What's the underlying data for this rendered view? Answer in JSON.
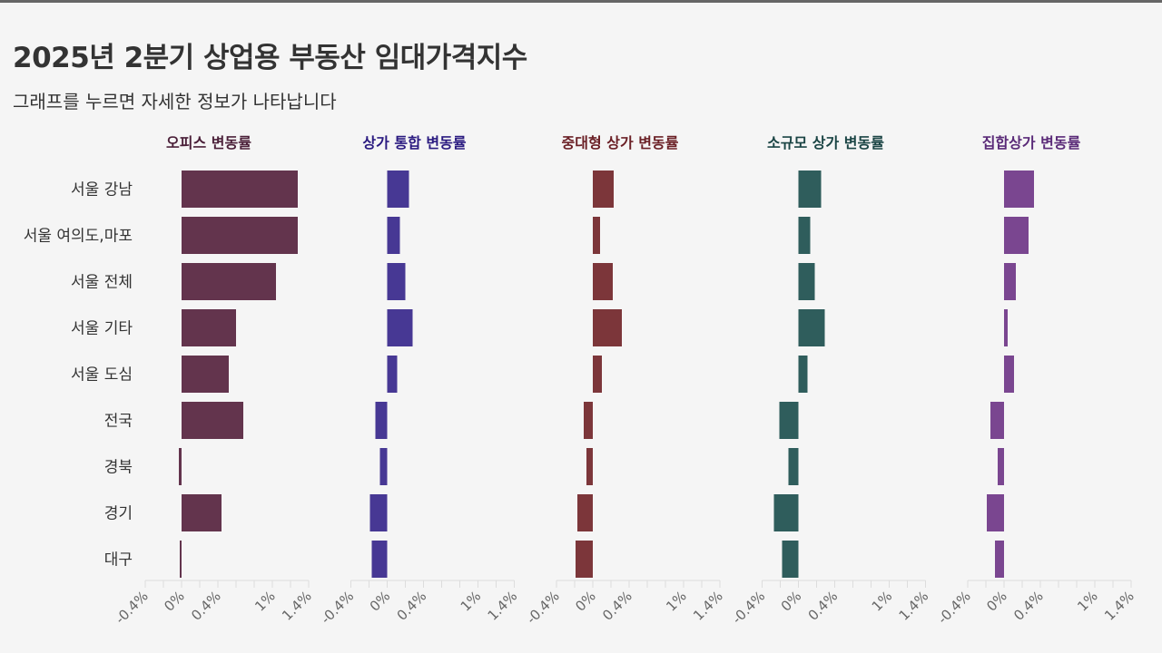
{
  "header": {
    "title": "2025년 2분기 상업용 부동산 임대가격지수",
    "subtitle": "그래프를 누르면 자세한 정보가 나타납니다"
  },
  "chart_data": {
    "type": "bar",
    "orientation": "horizontal",
    "layout": "small-multiples",
    "categories": [
      "서울 강남",
      "서울 여의도,마포",
      "서울 전체",
      "서울 기타",
      "서울 도심",
      "전국",
      "경북",
      "경기",
      "대구"
    ],
    "x_ticks": [
      -0.4,
      0,
      0.4,
      1,
      1.4
    ],
    "x_tick_labels": [
      "-0.4%",
      "0%",
      "0.4%",
      "1%",
      "1.4%"
    ],
    "xlim": [
      -0.4,
      1.4
    ],
    "grid": false,
    "series": [
      {
        "name": "오피스 변동률",
        "color": "#63344d",
        "title_color": "#4a1f38",
        "values": [
          1.28,
          1.28,
          1.04,
          0.6,
          0.52,
          0.68,
          -0.03,
          0.44,
          -0.02
        ]
      },
      {
        "name": "상가 통합 변동률",
        "color": "#473894",
        "title_color": "#2a1a80",
        "values": [
          0.24,
          0.14,
          0.2,
          0.28,
          0.11,
          -0.13,
          -0.08,
          -0.19,
          -0.17
        ]
      },
      {
        "name": "중대형 상가 변동률",
        "color": "#7c363a",
        "title_color": "#6a1f25",
        "values": [
          0.23,
          0.08,
          0.22,
          0.32,
          0.1,
          -0.1,
          -0.07,
          -0.17,
          -0.19
        ]
      },
      {
        "name": "소규모 상가 변동률",
        "color": "#2f5d5c",
        "title_color": "#1a4444",
        "values": [
          0.25,
          0.13,
          0.18,
          0.29,
          0.1,
          -0.21,
          -0.11,
          -0.27,
          -0.18
        ]
      },
      {
        "name": "집합상가 변동률",
        "color": "#7a4690",
        "title_color": "#5a2a78",
        "values": [
          0.33,
          0.27,
          0.13,
          0.04,
          0.11,
          -0.15,
          -0.07,
          -0.19,
          -0.1
        ]
      }
    ]
  }
}
